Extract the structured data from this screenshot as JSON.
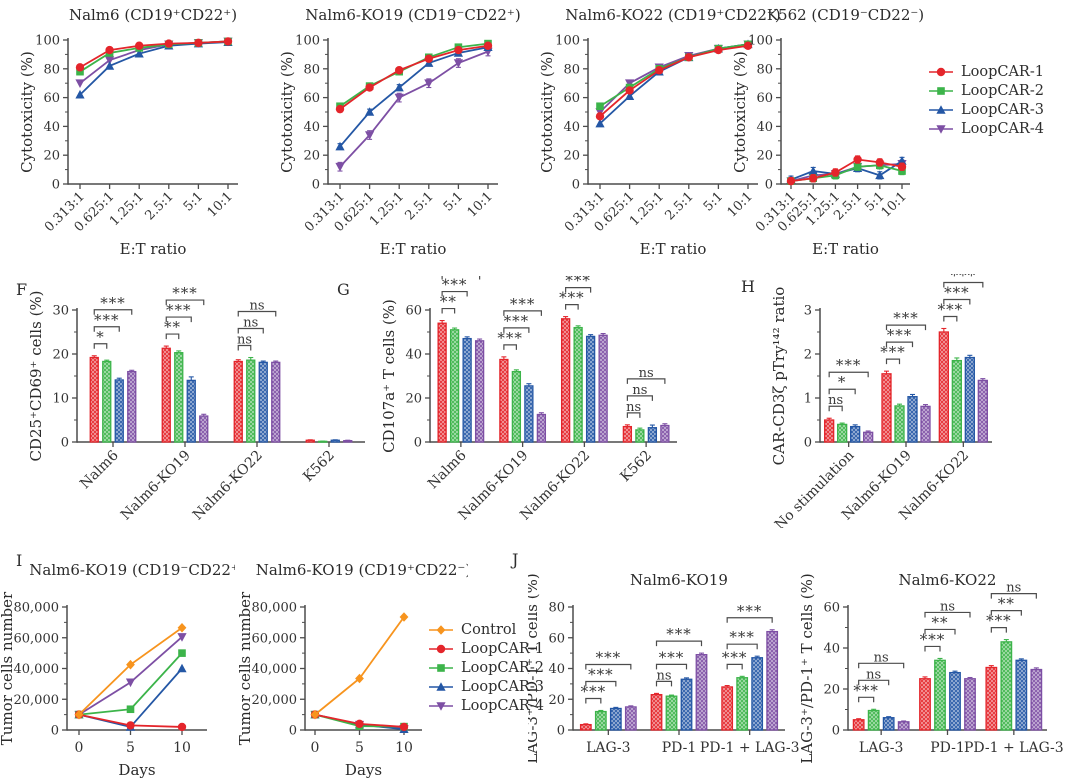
{
  "panels": {
    "F": "F",
    "G": "G",
    "H": "H",
    "I": "I",
    "J": "J"
  },
  "legends": [
    {
      "name": "loopcar-legend",
      "items": [
        {
          "label": "LoopCAR-1",
          "color": "#e4252b",
          "marker": "circle"
        },
        {
          "label": "LoopCAR-2",
          "color": "#3cb44a",
          "marker": "square"
        },
        {
          "label": "LoopCAR-3",
          "color": "#2457a5",
          "marker": "triangle"
        },
        {
          "label": "LoopCAR-4",
          "color": "#7d4fa4",
          "marker": "triangle-down"
        }
      ]
    },
    {
      "name": "tumor-growth-legend",
      "items": [
        {
          "label": "Control",
          "color": "#f7941e",
          "marker": "diamond"
        },
        {
          "label": "LoopCAR-1",
          "color": "#e4252b",
          "marker": "circle"
        },
        {
          "label": "LoopCAR-2",
          "color": "#3cb44a",
          "marker": "square"
        },
        {
          "label": "LoopCAR-3",
          "color": "#2457a5",
          "marker": "triangle"
        },
        {
          "label": "LoopCAR-4",
          "color": "#7d4fa4",
          "marker": "triangle-down"
        }
      ]
    }
  ],
  "chart_data": [
    {
      "id": "cytotoxicity-nalm6",
      "type": "line",
      "title": "Nalm6 (CD19⁺CD22⁺)",
      "ylabel": "Cytotoxicity (%)",
      "xlabel": "E:T ratio",
      "ylim": [
        0,
        100
      ],
      "yticks": [
        0,
        20,
        40,
        60,
        80,
        100
      ],
      "x_categories": [
        "0.313:1",
        "0.625:1",
        "1.25:1",
        "2.5:1",
        "5:1",
        "10:1"
      ],
      "series": [
        {
          "name": "LoopCAR-1",
          "color": "#e4252b",
          "marker": "circle",
          "values": [
            81,
            93,
            96,
            97.5,
            98,
            99
          ]
        },
        {
          "name": "LoopCAR-2",
          "color": "#3cb44a",
          "marker": "square",
          "values": [
            78,
            91,
            94.5,
            97,
            98,
            99
          ]
        },
        {
          "name": "LoopCAR-3",
          "color": "#2457a5",
          "marker": "triangle",
          "values": [
            62,
            82,
            90.5,
            96,
            97.5,
            98.5
          ]
        },
        {
          "name": "LoopCAR-4",
          "color": "#7d4fa4",
          "marker": "triangle-down",
          "values": [
            70,
            86,
            93,
            97,
            98,
            99
          ]
        }
      ]
    },
    {
      "id": "cytotoxicity-nalm6-ko19",
      "type": "line",
      "title": "Nalm6-KO19 (CD19⁻CD22⁺)",
      "ylabel": "Cytotoxicity (%)",
      "xlabel": "E:T ratio",
      "ylim": [
        0,
        100
      ],
      "yticks": [
        0,
        20,
        40,
        60,
        80,
        100
      ],
      "x_categories": [
        "0.313:1",
        "0.625:1",
        "1.25:1",
        "2.5:1",
        "5:1",
        "10:1"
      ],
      "series": [
        {
          "name": "LoopCAR-1",
          "color": "#e4252b",
          "marker": "circle",
          "values": [
            52,
            67,
            79,
            87,
            93,
            96
          ]
        },
        {
          "name": "LoopCAR-2",
          "color": "#3cb44a",
          "marker": "square",
          "values": [
            54,
            68,
            78,
            88,
            95,
            97.5
          ]
        },
        {
          "name": "LoopCAR-3",
          "color": "#2457a5",
          "marker": "triangle",
          "values": [
            26,
            50,
            67,
            84,
            91,
            95
          ],
          "err": 2
        },
        {
          "name": "LoopCAR-4",
          "color": "#7d4fa4",
          "marker": "triangle-down",
          "values": [
            12,
            34,
            60,
            70,
            84,
            92
          ],
          "err": 3
        }
      ]
    },
    {
      "id": "cytotoxicity-nalm6-ko22",
      "type": "line",
      "title": "Nalm6-KO22 (CD19⁺CD22⁻)",
      "ylabel": "Cytotoxicity (%)",
      "xlabel": "E:T ratio",
      "ylim": [
        0,
        100
      ],
      "yticks": [
        0,
        20,
        40,
        60,
        80,
        100
      ],
      "x_categories": [
        "0.313:1",
        "0.625:1",
        "1.25:1",
        "2.5:1",
        "5:1",
        "10:1"
      ],
      "series": [
        {
          "name": "LoopCAR-1",
          "color": "#e4252b",
          "marker": "circle",
          "values": [
            47,
            65,
            79,
            88,
            93,
            96
          ]
        },
        {
          "name": "LoopCAR-2",
          "color": "#3cb44a",
          "marker": "square",
          "values": [
            54,
            67,
            80,
            88,
            94,
            97
          ]
        },
        {
          "name": "LoopCAR-3",
          "color": "#2457a5",
          "marker": "triangle",
          "values": [
            42,
            61,
            78,
            88,
            94,
            97
          ]
        },
        {
          "name": "LoopCAR-4",
          "color": "#7d4fa4",
          "marker": "triangle-down",
          "values": [
            50,
            70,
            81,
            89,
            94,
            97
          ]
        }
      ]
    },
    {
      "id": "cytotoxicity-k562",
      "type": "line",
      "title": "K562 (CD19⁻CD22⁻)",
      "ylabel": "Cytotoxicity (%)",
      "xlabel": "E:T ratio",
      "ylim": [
        0,
        100
      ],
      "yticks": [
        0,
        20,
        40,
        60,
        80,
        100
      ],
      "x_categories": [
        "0.313:1",
        "0.625:1",
        "1.25:1",
        "2.5:1",
        "5:1",
        "10:1"
      ],
      "series": [
        {
          "name": "LoopCAR-1",
          "color": "#e4252b",
          "marker": "circle",
          "values": [
            2,
            4,
            8,
            17,
            15,
            12
          ],
          "err": 2.5
        },
        {
          "name": "LoopCAR-2",
          "color": "#3cb44a",
          "marker": "square",
          "values": [
            2,
            4,
            6,
            12,
            13,
            9
          ],
          "err": 2.5
        },
        {
          "name": "LoopCAR-3",
          "color": "#2457a5",
          "marker": "triangle",
          "values": [
            3,
            9,
            7,
            11,
            6,
            16
          ],
          "err": 2.5
        },
        {
          "name": "LoopCAR-4",
          "color": "#7d4fa4",
          "marker": "triangle-down",
          "values": [
            2,
            6,
            7,
            12,
            13,
            14
          ],
          "err": 2.5
        }
      ]
    },
    {
      "id": "activation-cd25-cd69",
      "type": "bar",
      "ylabel": "CD25⁺CD69⁺ cells (%)",
      "ylim": [
        0,
        30
      ],
      "yticks": [
        0,
        10,
        20,
        30
      ],
      "categories": [
        "Nalm6",
        "Nalm6-KO19",
        "Nalm6-KO22",
        "K562"
      ],
      "series": [
        {
          "name": "LoopCAR-1",
          "color": "#e4252b",
          "values": [
            19.2,
            21.3,
            18.3,
            0.4
          ],
          "errs": [
            0.4,
            0.5,
            0.4,
            0.1
          ]
        },
        {
          "name": "LoopCAR-2",
          "color": "#3cb44a",
          "values": [
            18.3,
            20.3,
            18.6,
            0.15
          ],
          "errs": [
            0.3,
            0.4,
            0.6,
            0.05
          ]
        },
        {
          "name": "LoopCAR-3",
          "color": "#2457a5",
          "values": [
            14.1,
            14.0,
            18.1,
            0.4
          ],
          "errs": [
            0.4,
            0.8,
            0.3,
            0.1
          ]
        },
        {
          "name": "LoopCAR-4",
          "color": "#7d4fa4",
          "values": [
            16.0,
            5.9,
            18.1,
            0.3
          ],
          "errs": [
            0.3,
            0.4,
            0.3,
            0.1
          ]
        }
      ],
      "sig": [
        [
          "*",
          "***",
          "***"
        ],
        [
          "**",
          "***",
          "***"
        ],
        [
          "ns",
          "ns",
          "ns"
        ],
        null
      ]
    },
    {
      "id": "degranulation-cd107a",
      "type": "bar",
      "ylabel": "CD107a⁺ T cells (%)",
      "ylim": [
        0,
        60
      ],
      "yticks": [
        0,
        20,
        40,
        60
      ],
      "categories": [
        "Nalm6",
        "Nalm6-KO19",
        "Nalm6-KO22",
        "K562"
      ],
      "series": [
        {
          "name": "LoopCAR-1",
          "color": "#e4252b",
          "values": [
            54,
            37.5,
            56,
            7
          ],
          "errs": [
            1.2,
            1.2,
            1.0,
            0.8
          ]
        },
        {
          "name": "LoopCAR-2",
          "color": "#3cb44a",
          "values": [
            51,
            32,
            52,
            5.5
          ],
          "errs": [
            0.8,
            0.8,
            0.8,
            0.8
          ]
        },
        {
          "name": "LoopCAR-3",
          "color": "#2457a5",
          "values": [
            47,
            25.5,
            48,
            6.5
          ],
          "errs": [
            0.8,
            1.0,
            0.8,
            1.2
          ]
        },
        {
          "name": "LoopCAR-4",
          "color": "#7d4fa4",
          "values": [
            46,
            12.5,
            48.5,
            7.5
          ],
          "errs": [
            0.8,
            0.8,
            0.8,
            0.8
          ]
        }
      ],
      "sig": [
        [
          "**",
          "***",
          "***"
        ],
        [
          "***",
          "***",
          "***"
        ],
        [
          "***",
          "***",
          "***"
        ],
        [
          "ns",
          "ns",
          "ns"
        ]
      ]
    },
    {
      "id": "car-cd3z-phosphorylation",
      "type": "bar",
      "ylabel": "CAR-CD3ζ pTry¹⁴² ratio",
      "ylim": [
        0,
        3
      ],
      "yticks": [
        0,
        1,
        2,
        3
      ],
      "categories": [
        "No stimulation",
        "Nalm6-KO19",
        "Nalm6-KO22"
      ],
      "series": [
        {
          "name": "LoopCAR-1",
          "color": "#e4252b",
          "values": [
            0.5,
            1.55,
            2.5
          ],
          "errs": [
            0.04,
            0.06,
            0.08
          ]
        },
        {
          "name": "LoopCAR-2",
          "color": "#3cb44a",
          "values": [
            0.4,
            0.82,
            1.85
          ],
          "errs": [
            0.03,
            0.04,
            0.06
          ]
        },
        {
          "name": "LoopCAR-3",
          "color": "#2457a5",
          "values": [
            0.35,
            1.03,
            1.92
          ],
          "errs": [
            0.04,
            0.05,
            0.05
          ]
        },
        {
          "name": "LoopCAR-4",
          "color": "#7d4fa4",
          "values": [
            0.22,
            0.81,
            1.4
          ],
          "errs": [
            0.03,
            0.04,
            0.04
          ]
        }
      ],
      "sig": [
        [
          "ns",
          "*",
          "***"
        ],
        [
          "***",
          "***",
          "***"
        ],
        [
          "***",
          "***",
          "***"
        ]
      ]
    },
    {
      "id": "tumor-growth-ko19-cd22pos",
      "type": "line",
      "title": "Nalm6-KO19 (CD19⁻CD22⁺)",
      "ylabel": "Tumor cells number",
      "xlabel": "Days",
      "ylim": [
        0,
        80000
      ],
      "yticks": [
        0,
        20000,
        40000,
        60000,
        80000
      ],
      "ytick_labels": [
        "0",
        "20,000",
        "40,000",
        "60,000",
        "80,000"
      ],
      "x_categories": [
        "0",
        "5",
        "10"
      ],
      "series": [
        {
          "name": "Control",
          "color": "#f7941e",
          "marker": "diamond",
          "values": [
            10000,
            42500,
            66500
          ]
        },
        {
          "name": "LoopCAR-1",
          "color": "#e4252b",
          "marker": "circle",
          "values": [
            10000,
            3000,
            2000
          ]
        },
        {
          "name": "LoopCAR-2",
          "color": "#3cb44a",
          "marker": "square",
          "values": [
            10000,
            13500,
            50000
          ]
        },
        {
          "name": "LoopCAR-3",
          "color": "#2457a5",
          "marker": "triangle",
          "values": [
            10000,
            2000,
            40000
          ]
        },
        {
          "name": "LoopCAR-4",
          "color": "#7d4fa4",
          "marker": "triangle-down",
          "values": [
            10000,
            31000,
            60500
          ]
        }
      ]
    },
    {
      "id": "tumor-growth-ko19-cd19pos",
      "type": "line",
      "title": "Nalm6-KO19 (CD19⁺CD22⁻)",
      "ylabel": "Tumor cells number",
      "xlabel": "Days",
      "ylim": [
        0,
        80000
      ],
      "yticks": [
        0,
        20000,
        40000,
        60000,
        80000
      ],
      "ytick_labels": [
        "0",
        "20,000",
        "40,000",
        "60,000",
        "80,000"
      ],
      "x_categories": [
        "0",
        "5",
        "10"
      ],
      "series": [
        {
          "name": "Control",
          "color": "#f7941e",
          "marker": "diamond",
          "values": [
            10000,
            33500,
            73500
          ]
        },
        {
          "name": "LoopCAR-1",
          "color": "#e4252b",
          "marker": "circle",
          "values": [
            10000,
            4000,
            2000
          ]
        },
        {
          "name": "LoopCAR-2",
          "color": "#3cb44a",
          "marker": "square",
          "values": [
            10000,
            2500,
            2200
          ]
        },
        {
          "name": "LoopCAR-3",
          "color": "#2457a5",
          "marker": "triangle",
          "values": [
            10000,
            3500,
            500
          ]
        },
        {
          "name": "LoopCAR-4",
          "color": "#7d4fa4",
          "marker": "triangle-down",
          "values": [
            10000,
            3500,
            800
          ]
        }
      ]
    },
    {
      "id": "exhaustion-ko19",
      "type": "bar",
      "title": "Nalm6-KO19",
      "ylabel": "LAG-3⁺/PD-1⁺ T cells (%)",
      "ylim": [
        0,
        80
      ],
      "yticks": [
        0,
        20,
        40,
        60,
        80
      ],
      "categories": [
        "LAG-3",
        "PD-1",
        "PD-1 + LAG-3"
      ],
      "series": [
        {
          "name": "LoopCAR-1",
          "color": "#e4252b",
          "values": [
            3.5,
            23,
            28
          ],
          "errs": [
            0.5,
            0.8,
            0.9
          ]
        },
        {
          "name": "LoopCAR-2",
          "color": "#3cb44a",
          "values": [
            12,
            22,
            34
          ],
          "errs": [
            0.7,
            0.7,
            0.9
          ]
        },
        {
          "name": "LoopCAR-3",
          "color": "#2457a5",
          "values": [
            14,
            33,
            47
          ],
          "errs": [
            0.7,
            0.9,
            1.0
          ]
        },
        {
          "name": "LoopCAR-4",
          "color": "#7d4fa4",
          "values": [
            15,
            49,
            64
          ],
          "errs": [
            0.7,
            1.0,
            1.2
          ]
        }
      ],
      "sig": [
        [
          "***",
          "***",
          "***"
        ],
        [
          "ns",
          "***",
          "***"
        ],
        [
          "***",
          "***",
          "***"
        ]
      ]
    },
    {
      "id": "exhaustion-ko22",
      "type": "bar",
      "title": "Nalm6-KO22",
      "ylabel": "LAG-3⁺/PD-1⁺ T cells (%)",
      "ylim": [
        0,
        60
      ],
      "yticks": [
        0,
        20,
        40,
        60
      ],
      "categories": [
        "LAG-3",
        "PD-1",
        "PD-1 + LAG-3"
      ],
      "series": [
        {
          "name": "LoopCAR-1",
          "color": "#e4252b",
          "values": [
            5,
            25,
            30.5
          ],
          "errs": [
            0.5,
            0.9,
            0.9
          ]
        },
        {
          "name": "LoopCAR-2",
          "color": "#3cb44a",
          "values": [
            9.5,
            34,
            43
          ],
          "errs": [
            0.6,
            0.9,
            1.1
          ]
        },
        {
          "name": "LoopCAR-3",
          "color": "#2457a5",
          "values": [
            6,
            28,
            34
          ],
          "errs": [
            0.5,
            0.7,
            0.7
          ]
        },
        {
          "name": "LoopCAR-4",
          "color": "#7d4fa4",
          "values": [
            4,
            25,
            29.5
          ],
          "errs": [
            0.4,
            0.6,
            0.8
          ]
        }
      ],
      "sig": [
        [
          "***",
          "ns",
          "ns"
        ],
        [
          "***",
          "**",
          "ns"
        ],
        [
          "***",
          "**",
          "ns"
        ]
      ]
    }
  ]
}
